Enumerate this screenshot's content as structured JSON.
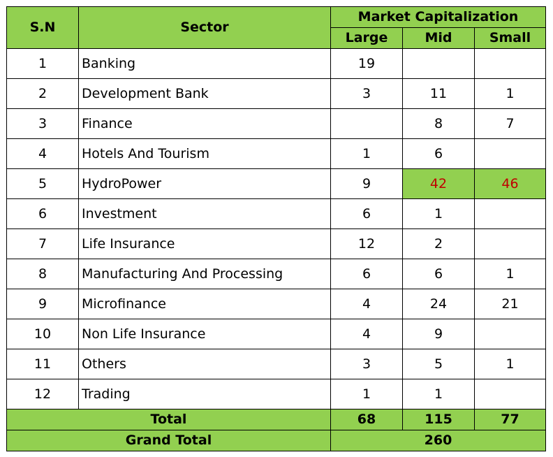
{
  "header": {
    "sn": "S.N",
    "sector": "Sector",
    "market_cap": "Market Capitalization",
    "large": "Large",
    "mid": "Mid",
    "small": "Small"
  },
  "rows": [
    {
      "sn": "1",
      "sector": "Banking",
      "large": "19",
      "mid": "",
      "small": ""
    },
    {
      "sn": "2",
      "sector": "Development Bank",
      "large": "3",
      "mid": "11",
      "small": "1"
    },
    {
      "sn": "3",
      "sector": "Finance",
      "large": "",
      "mid": "8",
      "small": "7"
    },
    {
      "sn": "4",
      "sector": "Hotels And Tourism",
      "large": "1",
      "mid": "6",
      "small": ""
    },
    {
      "sn": "5",
      "sector": "HydroPower",
      "large": "9",
      "mid": "42",
      "small": "46"
    },
    {
      "sn": "6",
      "sector": "Investment",
      "large": "6",
      "mid": "1",
      "small": ""
    },
    {
      "sn": "7",
      "sector": "Life Insurance",
      "large": "12",
      "mid": "2",
      "small": ""
    },
    {
      "sn": "8",
      "sector": "Manufacturing And Processing",
      "large": "6",
      "mid": "6",
      "small": "1"
    },
    {
      "sn": "9",
      "sector": "Microfinance",
      "large": "4",
      "mid": "24",
      "small": "21"
    },
    {
      "sn": "10",
      "sector": "Non Life Insurance",
      "large": "4",
      "mid": "9",
      "small": ""
    },
    {
      "sn": "11",
      "sector": "Others",
      "large": "3",
      "mid": "5",
      "small": "1"
    },
    {
      "sn": "12",
      "sector": "Trading",
      "large": "1",
      "mid": "1",
      "small": ""
    }
  ],
  "total": {
    "label": "Total",
    "large": "68",
    "mid": "115",
    "small": "77"
  },
  "grand_total": {
    "label": "Grand Total",
    "value": "260"
  },
  "colors": {
    "header_fill": "#92d050",
    "highlight_text": "#c00000"
  }
}
